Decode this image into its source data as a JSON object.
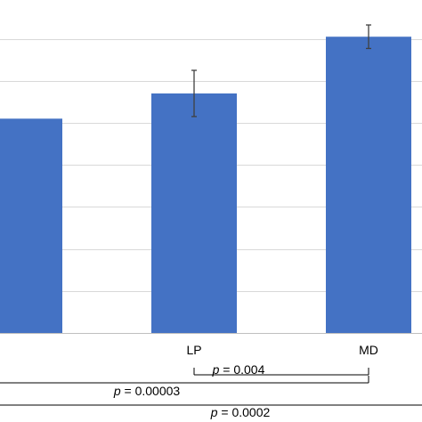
{
  "colors": {
    "bar": "#4472C4",
    "grid": "#D9D9D9",
    "axis": "#BFBFBF",
    "error_bar": "#404040",
    "bracket": "#000000"
  },
  "chart_data": {
    "type": "bar",
    "title": "",
    "xlabel": "",
    "ylabel": "",
    "categories": [
      "",
      "LP",
      "MD"
    ],
    "values": [
      5.1,
      5.7,
      7.05
    ],
    "error": [
      null,
      0.55,
      0.28
    ],
    "ylim": [
      0,
      7.5
    ],
    "grid": true,
    "y_gridline_step": 1,
    "comparisons": [
      {
        "p_symbol": "p",
        "equals": " = ",
        "value": "0.004",
        "from": "LP",
        "to": "MD"
      },
      {
        "p_symbol": "p",
        "equals": " = ",
        "value": "0.00003",
        "from": "",
        "to": "MD"
      },
      {
        "p_symbol": "p",
        "equals": " = ",
        "value": "0.0002",
        "from": "",
        "to": ""
      }
    ]
  }
}
